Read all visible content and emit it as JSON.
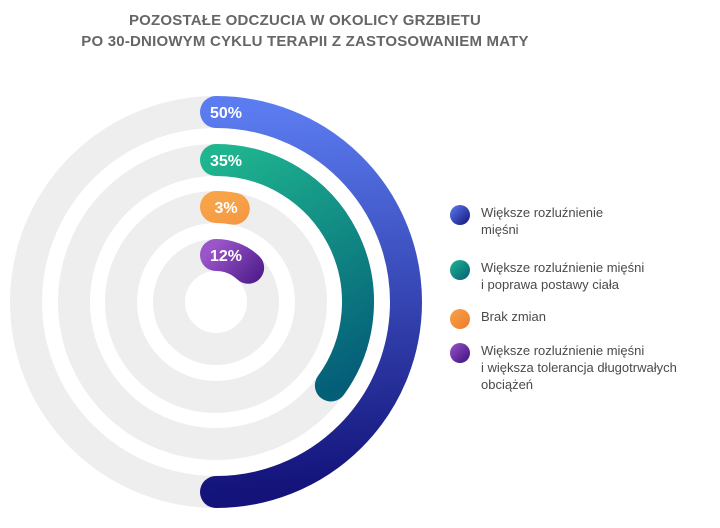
{
  "title": {
    "line1": "POZOSTAŁE ODCZUCIA W OKOLICY GRZBIETU",
    "line2": "PO 30-DNIOWYM CYKLU TERAPII Z ZASTOSOWANIEM MATY"
  },
  "chart_data": {
    "type": "radial-bar",
    "title": "POZOSTAŁE ODCZUCIA W OKOLICY GRZBIETU PO 30-DNIOWYM CYKLU TERAPII Z ZASTOSOWANIEM MATY",
    "unit": "%",
    "max": 100,
    "series": [
      {
        "name": "Większe rozluźnienie\nmięśni",
        "value": 50,
        "label": "50%",
        "color_start": "#5b7cf0",
        "color_end": "#13137a"
      },
      {
        "name": "Większe rozluźnienie mięśni\ni poprawa postawy ciała",
        "value": 35,
        "label": "35%",
        "color_start": "#1fb58f",
        "color_end": "#045e78"
      },
      {
        "name": "Brak zmian",
        "value": 3,
        "label": "3%",
        "color_start": "#f7a34a",
        "color_end": "#ef7a2b"
      },
      {
        "name": "Większe rozluźnienie mięśni\ni większa tolerancja długotrwałych\nobciążeń",
        "value": 12,
        "label": "12%",
        "color_start": "#9a55c9",
        "color_end": "#3c0f7e"
      }
    ],
    "track_color": "#eeeeee"
  }
}
